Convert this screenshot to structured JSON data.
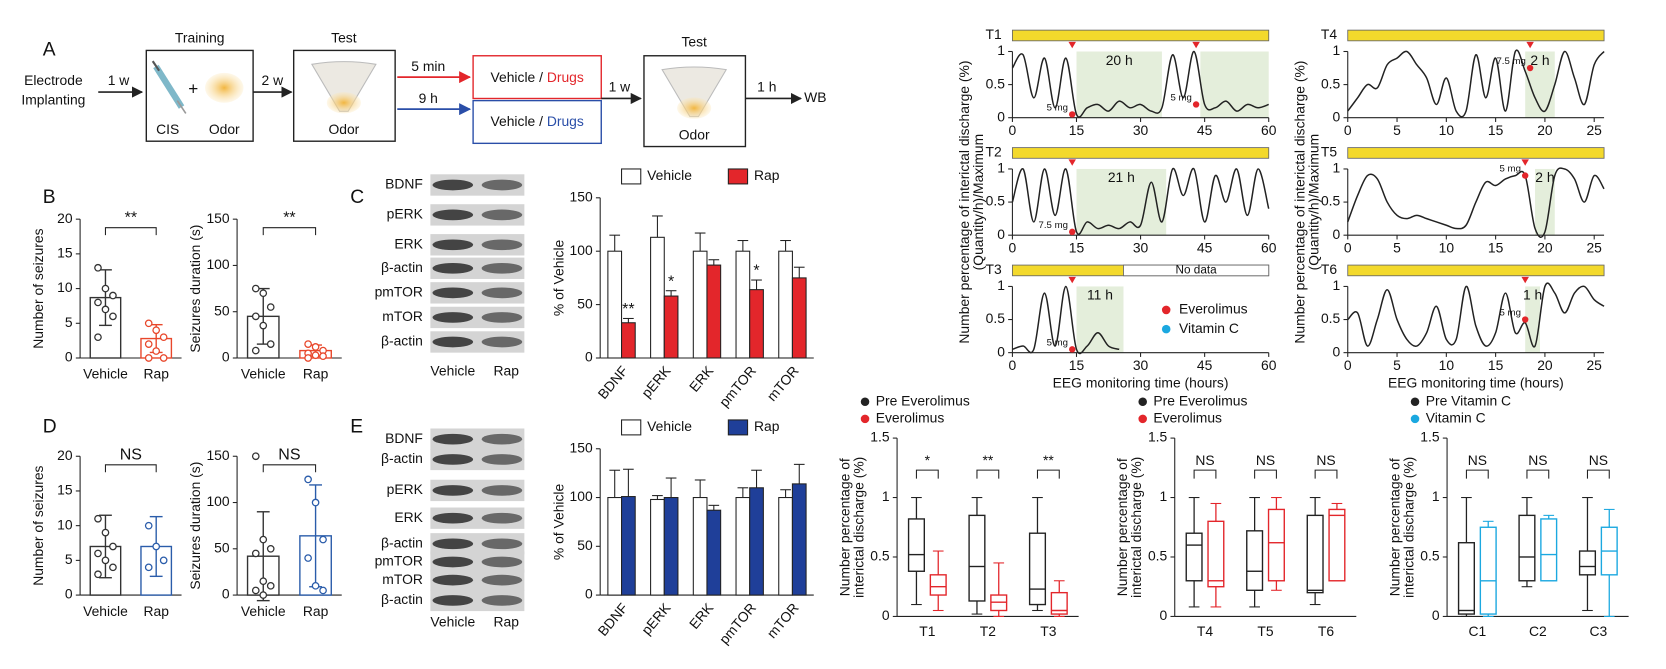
{
  "panels": [
    "A",
    "B",
    "C",
    "D",
    "E"
  ],
  "diagram": {
    "start": [
      "Electrode",
      "Implanting"
    ],
    "interval1": "1 w",
    "training": {
      "title": "Training",
      "items": [
        "CIS",
        "+",
        "Odor"
      ]
    },
    "interval2": "2 w",
    "test1": {
      "title": "Test",
      "item": "Odor"
    },
    "branch_short": {
      "time": "5 min",
      "text": "Vehicle / ",
      "drug": "Drugs"
    },
    "branch_long": {
      "time": "9 h",
      "text": "Vehicle / ",
      "drug": "Drugs"
    },
    "interval3": "1 w",
    "test2": {
      "title": "Test",
      "item": "Odor"
    },
    "interval4": "1 h",
    "end": "WB"
  },
  "blots": [
    {
      "labels": [
        "BDNF",
        "pERK",
        "ERK",
        "β-actin",
        "pmTOR",
        "mTOR",
        "β-actin"
      ],
      "groups": [
        "Vehicle",
        "Rap"
      ]
    },
    {
      "labels": [
        "BDNF",
        "β-actin",
        "pERK",
        "ERK",
        "β-actin",
        "pmTOR",
        "mTOR",
        "β-actin"
      ],
      "groups": [
        "Vehicle",
        "Rap"
      ]
    }
  ],
  "chart_data": [
    {
      "type": "bar-dot",
      "ylabel": "Number of seizures",
      "categories": [
        "Vehicle",
        "Rap"
      ],
      "values": [
        8.7,
        2.8
      ],
      "errors": [
        4,
        2
      ],
      "points": [
        [
          13,
          10,
          9,
          8,
          7,
          6,
          3
        ],
        [
          5,
          4,
          3,
          2,
          1,
          0,
          0
        ]
      ],
      "colors": [
        "#333333",
        "#e8472b"
      ],
      "ylim": [
        0,
        20
      ],
      "yticks": [
        0,
        5,
        10,
        15,
        20
      ],
      "significance": "**"
    },
    {
      "type": "bar-dot",
      "ylabel": "Seizures duration (s)",
      "categories": [
        "Vehicle",
        "Rap"
      ],
      "values": [
        45,
        8
      ],
      "errors": [
        30,
        6
      ],
      "points": [
        [
          75,
          70,
          55,
          45,
          35,
          15,
          8
        ],
        [
          15,
          12,
          8,
          5,
          3,
          2,
          0
        ]
      ],
      "colors": [
        "#333333",
        "#e8472b"
      ],
      "ylim": [
        0,
        150
      ],
      "yticks": [
        0,
        50,
        100,
        150
      ],
      "significance": "**"
    },
    {
      "type": "grouped-bar",
      "ylabel": "% of Vehicle",
      "categories": [
        "BDNF",
        "pERK",
        "ERK",
        "pmTOR",
        "mTOR"
      ],
      "series": [
        {
          "name": "Vehicle",
          "color": "#ffffff",
          "values": [
            100,
            113,
            100,
            100,
            100
          ],
          "errors": [
            15,
            20,
            17,
            10,
            10
          ]
        },
        {
          "name": "Rap",
          "color": "#e3262b",
          "values": [
            33,
            58,
            87,
            64,
            75
          ],
          "errors": [
            4,
            5,
            5,
            9,
            10
          ]
        }
      ],
      "significance": [
        "**",
        "*",
        null,
        "*",
        null
      ],
      "ylim": [
        0,
        150
      ],
      "yticks": [
        0,
        50,
        100,
        150
      ]
    },
    {
      "type": "bar-dot",
      "ylabel": "Number of seizures",
      "categories": [
        "Vehicle",
        "Rap"
      ],
      "values": [
        7,
        7
      ],
      "errors": [
        4.5,
        4.3
      ],
      "points": [
        [
          11,
          9,
          7,
          6,
          5,
          4,
          3
        ],
        [
          10,
          7,
          5,
          4
        ]
      ],
      "colors": [
        "#333333",
        "#2a5caa"
      ],
      "ylim": [
        0,
        20
      ],
      "yticks": [
        0,
        5,
        10,
        15,
        20
      ],
      "significance": "NS"
    },
    {
      "type": "bar-dot",
      "ylabel": "Seizures duration (s)",
      "categories": [
        "Vehicle",
        "Rap"
      ],
      "values": [
        42,
        64
      ],
      "errors": [
        48,
        55
      ],
      "points": [
        [
          150,
          60,
          50,
          45,
          15,
          10,
          5,
          0
        ],
        [
          125,
          100,
          60,
          40,
          10,
          5
        ]
      ],
      "colors": [
        "#333333",
        "#2a5caa"
      ],
      "ylim": [
        0,
        150
      ],
      "yticks": [
        0,
        50,
        100,
        150
      ],
      "significance": "NS"
    },
    {
      "type": "grouped-bar",
      "ylabel": "% of Vehicle",
      "categories": [
        "BDNF",
        "pERK",
        "ERK",
        "pmTOR",
        "mTOR"
      ],
      "series": [
        {
          "name": "Vehicle",
          "color": "#ffffff",
          "values": [
            100,
            98,
            100,
            100,
            100
          ],
          "errors": [
            28,
            4,
            18,
            10,
            8
          ]
        },
        {
          "name": "Rap",
          "color": "#1f3f99",
          "values": [
            101,
            100,
            87,
            110,
            114
          ],
          "errors": [
            28,
            20,
            5,
            18,
            20
          ]
        }
      ],
      "ylim": [
        0,
        150
      ],
      "yticks": [
        0,
        50,
        100,
        150
      ]
    },
    {
      "type": "line",
      "title": "T1",
      "x": [
        0,
        2.5,
        5,
        7.5,
        10,
        12.5,
        15,
        17.5,
        20,
        22.5,
        25,
        27.5,
        30,
        32.5,
        35,
        37.5,
        40,
        42.5,
        45,
        47.5,
        50,
        52.5,
        55,
        57.5,
        60
      ],
      "values": [
        0.75,
        0.95,
        0.3,
        0.9,
        0.15,
        0.9,
        0.05,
        0.15,
        0.2,
        0.1,
        0.25,
        0.15,
        0.2,
        0.1,
        0.15,
        0.95,
        0.3,
        1.0,
        0.2,
        0.15,
        0.25,
        0.1,
        0.2,
        0.15,
        0.2
      ],
      "highlights": [
        {
          "from": 15,
          "to": 35,
          "label": "20 h"
        },
        {
          "from": 44,
          "to": 60
        }
      ],
      "doses": [
        {
          "x": 14,
          "y": 0.05,
          "label": "5 mg"
        },
        {
          "x": 43,
          "y": 0.2,
          "label": "5 mg"
        }
      ],
      "xlim": [
        0,
        60
      ],
      "xticks": [
        0,
        15,
        30,
        45,
        60
      ],
      "ylim": [
        0,
        1
      ],
      "yticks": [
        0,
        0.5,
        1
      ]
    },
    {
      "type": "line",
      "title": "T2",
      "ylabel": [
        "Number percentage of interictal discharge (%)",
        "(Quantity/h)/Maximum"
      ],
      "x": [
        0,
        2.5,
        5,
        7.5,
        10,
        12.5,
        15,
        17.5,
        20,
        22.5,
        25,
        27.5,
        30,
        32.5,
        35,
        37.5,
        40,
        42.5,
        45,
        47.5,
        50,
        52.5,
        55,
        57.5,
        60
      ],
      "values": [
        0.5,
        1.0,
        0.2,
        1.0,
        0.3,
        1.0,
        0.05,
        0.2,
        0.1,
        0.15,
        0.1,
        0.2,
        0.15,
        0.8,
        0.2,
        1.0,
        0.6,
        1.0,
        0.2,
        0.9,
        0.5,
        1.0,
        0.3,
        1.0,
        0.4
      ],
      "highlights": [
        {
          "from": 15,
          "to": 36,
          "label": "21 h"
        }
      ],
      "doses": [
        {
          "x": 14,
          "y": 0.05,
          "label": "7.5 mg"
        }
      ],
      "xlim": [
        0,
        60
      ],
      "xticks": [
        0,
        15,
        30,
        45,
        60
      ],
      "ylim": [
        0,
        1
      ],
      "yticks": [
        0,
        0.5,
        1
      ]
    },
    {
      "type": "line",
      "title": "T3",
      "xlabel": "EEG monitoring time (hours)",
      "x": [
        0,
        2.5,
        5,
        7.5,
        10,
        12.5,
        15,
        17.5,
        20,
        22.5,
        25
      ],
      "values": [
        0.05,
        0.1,
        0.05,
        0.9,
        0.1,
        1.0,
        0.05,
        0.1,
        0.3,
        0.1,
        0.05
      ],
      "highlights": [
        {
          "from": 15,
          "to": 26,
          "label": "11 h"
        }
      ],
      "doses": [
        {
          "x": 14,
          "y": 0.05,
          "label": "5 mg"
        }
      ],
      "note": {
        "text": "No data",
        "from": 26,
        "to": 60
      },
      "legend": [
        {
          "name": "Everolimus",
          "color": "#e3262b"
        },
        {
          "name": "Vitamin C",
          "color": "#1ba8e0"
        }
      ],
      "xlim": [
        0,
        60
      ],
      "xticks": [
        0,
        15,
        30,
        45,
        60
      ],
      "ylim": [
        0,
        1
      ],
      "yticks": [
        0,
        0.5,
        1
      ]
    },
    {
      "type": "line",
      "title": "T4",
      "x": [
        0,
        1,
        2,
        3,
        4,
        5,
        6,
        7,
        8,
        9,
        10,
        11,
        12,
        13,
        14,
        15,
        16,
        17,
        18,
        19,
        20,
        21,
        22,
        23,
        24,
        25,
        26
      ],
      "values": [
        0.1,
        0.3,
        0.5,
        0.45,
        0.8,
        0.9,
        1.0,
        0.8,
        0.6,
        0.2,
        0.6,
        0.1,
        0.1,
        0.95,
        0.3,
        0.9,
        0.1,
        1.0,
        0.7,
        0.3,
        0.1,
        0.5,
        1.0,
        0.6,
        0.2,
        0.8,
        1.0
      ],
      "highlights": [
        {
          "from": 18,
          "to": 21,
          "label": "2 h"
        }
      ],
      "doses": [
        {
          "x": 18.5,
          "y": 0.75,
          "label": "7.5 mg"
        }
      ],
      "xlim": [
        0,
        26
      ],
      "xticks": [
        0,
        5,
        10,
        15,
        20,
        25
      ],
      "ylim": [
        0,
        1
      ],
      "yticks": [
        0,
        0.5,
        1
      ]
    },
    {
      "type": "line",
      "title": "T5",
      "ylabel": [
        "Number percentage of interictal discharge (%)",
        "(Quantity/h)/Maximum"
      ],
      "x": [
        0,
        1,
        2,
        3,
        4,
        5,
        6,
        7,
        8,
        9,
        10,
        11,
        12,
        13,
        14,
        15,
        16,
        17,
        18,
        19,
        20,
        21,
        22,
        23,
        24,
        25,
        26
      ],
      "values": [
        0.2,
        0.6,
        0.9,
        0.85,
        0.5,
        0.3,
        0.25,
        0.3,
        0.25,
        0.2,
        0.15,
        0.1,
        0.15,
        0.5,
        0.8,
        0.75,
        0.85,
        0.9,
        0.9,
        0.1,
        0.05,
        0.9,
        1.0,
        0.85,
        0.5,
        0.9,
        0.7
      ],
      "highlights": [
        {
          "from": 19,
          "to": 21,
          "label": "2 h"
        }
      ],
      "doses": [
        {
          "x": 18,
          "y": 0.9,
          "label": "5 mg"
        }
      ],
      "xlim": [
        0,
        26
      ],
      "xticks": [
        0,
        5,
        10,
        15,
        20,
        25
      ],
      "ylim": [
        0,
        1
      ],
      "yticks": [
        0,
        0.5,
        1
      ]
    },
    {
      "type": "line",
      "title": "T6",
      "xlabel": "EEG monitoring time (hours)",
      "x": [
        0,
        1,
        2,
        3,
        4,
        5,
        6,
        7,
        8,
        9,
        10,
        11,
        12,
        13,
        14,
        15,
        16,
        17,
        18,
        19,
        20,
        21,
        22,
        23,
        24,
        25,
        26
      ],
      "values": [
        0.5,
        0.6,
        0.1,
        0.5,
        0.95,
        0.5,
        0.2,
        0.1,
        0.3,
        0.7,
        0.2,
        0.2,
        1.0,
        0.4,
        0.1,
        0.3,
        0.9,
        0.3,
        0.45,
        0.1,
        1.0,
        0.9,
        0.6,
        0.9,
        1.0,
        0.8,
        0.7
      ],
      "highlights": [
        {
          "from": 18,
          "to": 19.5,
          "label": "1 h"
        }
      ],
      "doses": [
        {
          "x": 18,
          "y": 0.5,
          "label": "5 mg"
        }
      ],
      "xlim": [
        0,
        26
      ],
      "xticks": [
        0,
        5,
        10,
        15,
        20,
        25
      ],
      "ylim": [
        0,
        1
      ],
      "yticks": [
        0,
        0.5,
        1
      ]
    },
    {
      "type": "box",
      "ylabel": [
        "Number percentage of",
        "interictal discharge (%)"
      ],
      "categories": [
        "T1",
        "T2",
        "T3"
      ],
      "series": [
        {
          "name": "Pre Everolimus",
          "color": "#222222",
          "boxes": [
            [
              0.1,
              0.38,
              0.52,
              0.82,
              1.0
            ],
            [
              0.02,
              0.13,
              0.42,
              0.85,
              1.0
            ],
            [
              0.05,
              0.1,
              0.23,
              0.7,
              1.0
            ]
          ]
        },
        {
          "name": "Everolimus",
          "color": "#e3262b",
          "boxes": [
            [
              0.05,
              0.18,
              0.25,
              0.35,
              0.55
            ],
            [
              0,
              0.05,
              0.12,
              0.18,
              0.45
            ],
            [
              0,
              0.02,
              0.05,
              0.2,
              0.3
            ]
          ]
        }
      ],
      "significance": [
        "*",
        "**",
        "**"
      ],
      "ylim": [
        0,
        1.5
      ],
      "yticks": [
        0,
        0.5,
        1,
        1.5
      ]
    },
    {
      "type": "box",
      "ylabel": [
        "Number percentage of",
        "interictal discharge (%)"
      ],
      "categories": [
        "T4",
        "T5",
        "T6"
      ],
      "series": [
        {
          "name": "Pre Everolimus",
          "color": "#222222",
          "boxes": [
            [
              0.08,
              0.3,
              0.6,
              0.7,
              1.0
            ],
            [
              0.08,
              0.22,
              0.38,
              0.72,
              1.0
            ],
            [
              0.1,
              0.2,
              0.22,
              0.85,
              1.0
            ]
          ]
        },
        {
          "name": "Everolimus",
          "color": "#e3262b",
          "boxes": [
            [
              0.08,
              0.25,
              0.3,
              0.8,
              0.95
            ],
            [
              0.22,
              0.3,
              0.62,
              0.9,
              1.0
            ],
            [
              0.3,
              0.3,
              0.85,
              0.9,
              0.95
            ]
          ]
        }
      ],
      "significance": [
        "NS",
        "NS",
        "NS"
      ],
      "ylim": [
        0,
        1.5
      ],
      "yticks": [
        0,
        0.5,
        1,
        1.5
      ]
    },
    {
      "type": "box",
      "ylabel": [
        "Number percentage of",
        "interictal discharge (%)"
      ],
      "categories": [
        "C1",
        "C2",
        "C3"
      ],
      "series": [
        {
          "name": "Pre Vitamin C",
          "color": "#222222",
          "boxes": [
            [
              0,
              0.02,
              0.05,
              0.62,
              1.0
            ],
            [
              0.25,
              0.3,
              0.5,
              0.85,
              1.0
            ],
            [
              0.05,
              0.35,
              0.42,
              0.55,
              1.0
            ]
          ]
        },
        {
          "name": "Vitamin C",
          "color": "#1ba8e0",
          "boxes": [
            [
              0,
              0.02,
              0.3,
              0.75,
              0.8
            ],
            [
              0.3,
              0.3,
              0.52,
              0.82,
              0.85
            ],
            [
              0,
              0.35,
              0.55,
              0.75,
              0.9
            ]
          ]
        }
      ],
      "significance": [
        "NS",
        "NS",
        "NS"
      ],
      "ylim": [
        0,
        1.5
      ],
      "yticks": [
        0,
        0.5,
        1,
        1.5
      ]
    }
  ]
}
